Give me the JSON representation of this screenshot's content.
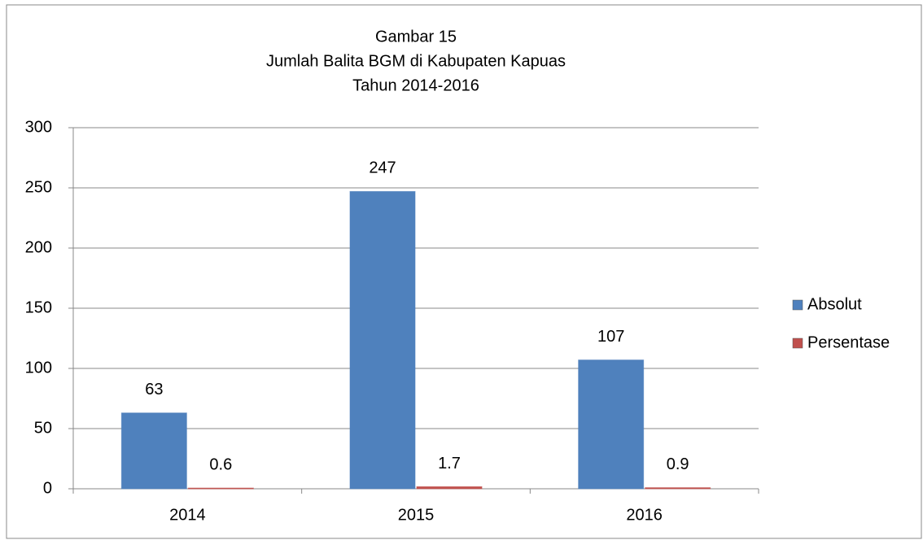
{
  "chart_data": {
    "type": "bar",
    "title": [
      "Gambar 15",
      "Jumlah Balita BGM di Kabupaten Kapuas",
      "Tahun  2014-2016"
    ],
    "categories": [
      "2014",
      "2015",
      "2016"
    ],
    "series": [
      {
        "name": "Absolut",
        "color": "#4f81bd",
        "values": [
          63,
          247,
          107
        ]
      },
      {
        "name": "Persentase",
        "color": "#c0504d",
        "values": [
          0.6,
          1.7,
          0.9
        ]
      }
    ],
    "ylim": [
      0,
      300
    ],
    "yticks": [
      0,
      50,
      100,
      150,
      200,
      250,
      300
    ],
    "grid": true,
    "legend": "right"
  }
}
